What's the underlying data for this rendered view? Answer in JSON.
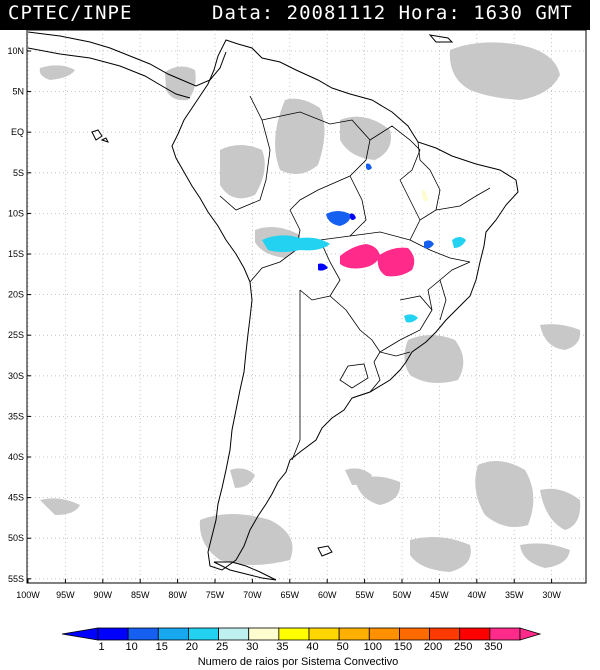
{
  "header": {
    "left": "CPTEC/INPE",
    "right": "Data: 20081112 Hora: 1630 GMT"
  },
  "map": {
    "lat_labels": [
      "10N",
      "5N",
      "EQ",
      "5S",
      "10S",
      "15S",
      "20S",
      "25S",
      "30S",
      "35S",
      "40S",
      "45S",
      "50S",
      "55S"
    ],
    "lon_labels": [
      "100W",
      "95W",
      "90W",
      "85W",
      "80W",
      "75W",
      "70W",
      "65W",
      "60W",
      "55W",
      "50W",
      "45W",
      "40W",
      "35W",
      "30W"
    ]
  },
  "legend": {
    "values": [
      "1",
      "10",
      "15",
      "20",
      "25",
      "30",
      "35",
      "40",
      "50",
      "100",
      "150",
      "200",
      "250",
      "350"
    ],
    "colors": [
      "#0000ff",
      "#1560f0",
      "#18a8f0",
      "#22d2f0",
      "#bff0f0",
      "#fdfdd0",
      "#ffff00",
      "#ffd600",
      "#ffb000",
      "#ff9000",
      "#ff6a00",
      "#ff3a00",
      "#ff0000",
      "#ff2a8a"
    ],
    "caption": "Numero de raios por Sistema Convectivo"
  },
  "icons": {
    "left_arrow": "legend-arrow-left-icon",
    "right_arrow": "legend-arrow-right-icon"
  }
}
